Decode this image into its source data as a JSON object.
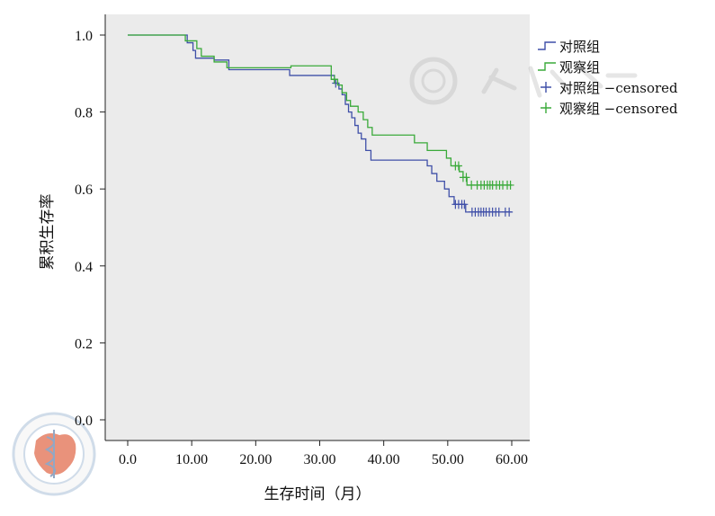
{
  "chart_data": {
    "type": "line",
    "subtype": "kaplan-meier-step",
    "title": "",
    "xlabel": "生存时间（月）",
    "ylabel": "累积生存率",
    "xlim": [
      0,
      60
    ],
    "ylim": [
      0,
      1.0
    ],
    "x_ticks": [
      "0.0",
      "10.00",
      "20.00",
      "30.00",
      "40.00",
      "50.00",
      "60.00"
    ],
    "x_tick_values": [
      0,
      10,
      20,
      30,
      40,
      50,
      60
    ],
    "y_ticks": [
      "0.0",
      "0.2",
      "0.4",
      "0.6",
      "0.8",
      "1.0"
    ],
    "y_tick_values": [
      0,
      0.2,
      0.4,
      0.6,
      0.8,
      1.0
    ],
    "grid": false,
    "background": "#ebebeb",
    "legend_position": "top-right",
    "legend": [
      "对照组",
      "观察组",
      "对照组 −censored",
      "观察组 −censored"
    ],
    "series": [
      {
        "name": "对照组",
        "color": "#3f4fa8",
        "steps": [
          [
            0,
            1.0
          ],
          [
            9.3,
            0.98
          ],
          [
            10.2,
            0.96
          ],
          [
            10.6,
            0.94
          ],
          [
            13.5,
            0.935
          ],
          [
            15.8,
            0.91
          ],
          [
            25.3,
            0.895
          ],
          [
            32.3,
            0.875
          ],
          [
            33.0,
            0.86
          ],
          [
            33.5,
            0.845
          ],
          [
            34.0,
            0.82
          ],
          [
            34.5,
            0.8
          ],
          [
            35.0,
            0.785
          ],
          [
            35.5,
            0.765
          ],
          [
            36.0,
            0.745
          ],
          [
            36.5,
            0.73
          ],
          [
            37.2,
            0.7
          ],
          [
            38.0,
            0.675
          ],
          [
            46.8,
            0.66
          ],
          [
            47.5,
            0.64
          ],
          [
            48.3,
            0.62
          ],
          [
            49.5,
            0.6
          ],
          [
            50.2,
            0.58
          ],
          [
            51.0,
            0.56
          ],
          [
            52.8,
            0.54
          ],
          [
            60.0,
            0.54
          ]
        ],
        "censored_x": [
          32.5,
          51.2,
          51.7,
          52.2,
          52.6,
          53.8,
          54.3,
          54.8,
          55.2,
          55.6,
          56.0,
          56.5,
          57.0,
          57.5,
          58.0,
          59.0,
          59.6
        ]
      },
      {
        "name": "观察组",
        "color": "#3aaa3a",
        "steps": [
          [
            0,
            1.0
          ],
          [
            9.0,
            0.985
          ],
          [
            10.8,
            0.965
          ],
          [
            11.5,
            0.945
          ],
          [
            13.5,
            0.93
          ],
          [
            15.5,
            0.915
          ],
          [
            25.5,
            0.92
          ],
          [
            31.8,
            0.885
          ],
          [
            32.8,
            0.87
          ],
          [
            33.5,
            0.85
          ],
          [
            34.2,
            0.83
          ],
          [
            34.8,
            0.815
          ],
          [
            36.0,
            0.8
          ],
          [
            36.8,
            0.78
          ],
          [
            37.5,
            0.76
          ],
          [
            38.2,
            0.74
          ],
          [
            44.8,
            0.72
          ],
          [
            46.8,
            0.7
          ],
          [
            49.8,
            0.68
          ],
          [
            50.5,
            0.66
          ],
          [
            51.8,
            0.645
          ],
          [
            52.4,
            0.63
          ],
          [
            53.0,
            0.61
          ],
          [
            60.0,
            0.61
          ]
        ],
        "censored_x": [
          32.3,
          51.2,
          51.7,
          52.4,
          52.9,
          53.7,
          54.6,
          55.2,
          55.7,
          56.2,
          56.6,
          57.0,
          57.6,
          58.1,
          58.6,
          59.3,
          59.8
        ]
      }
    ]
  }
}
